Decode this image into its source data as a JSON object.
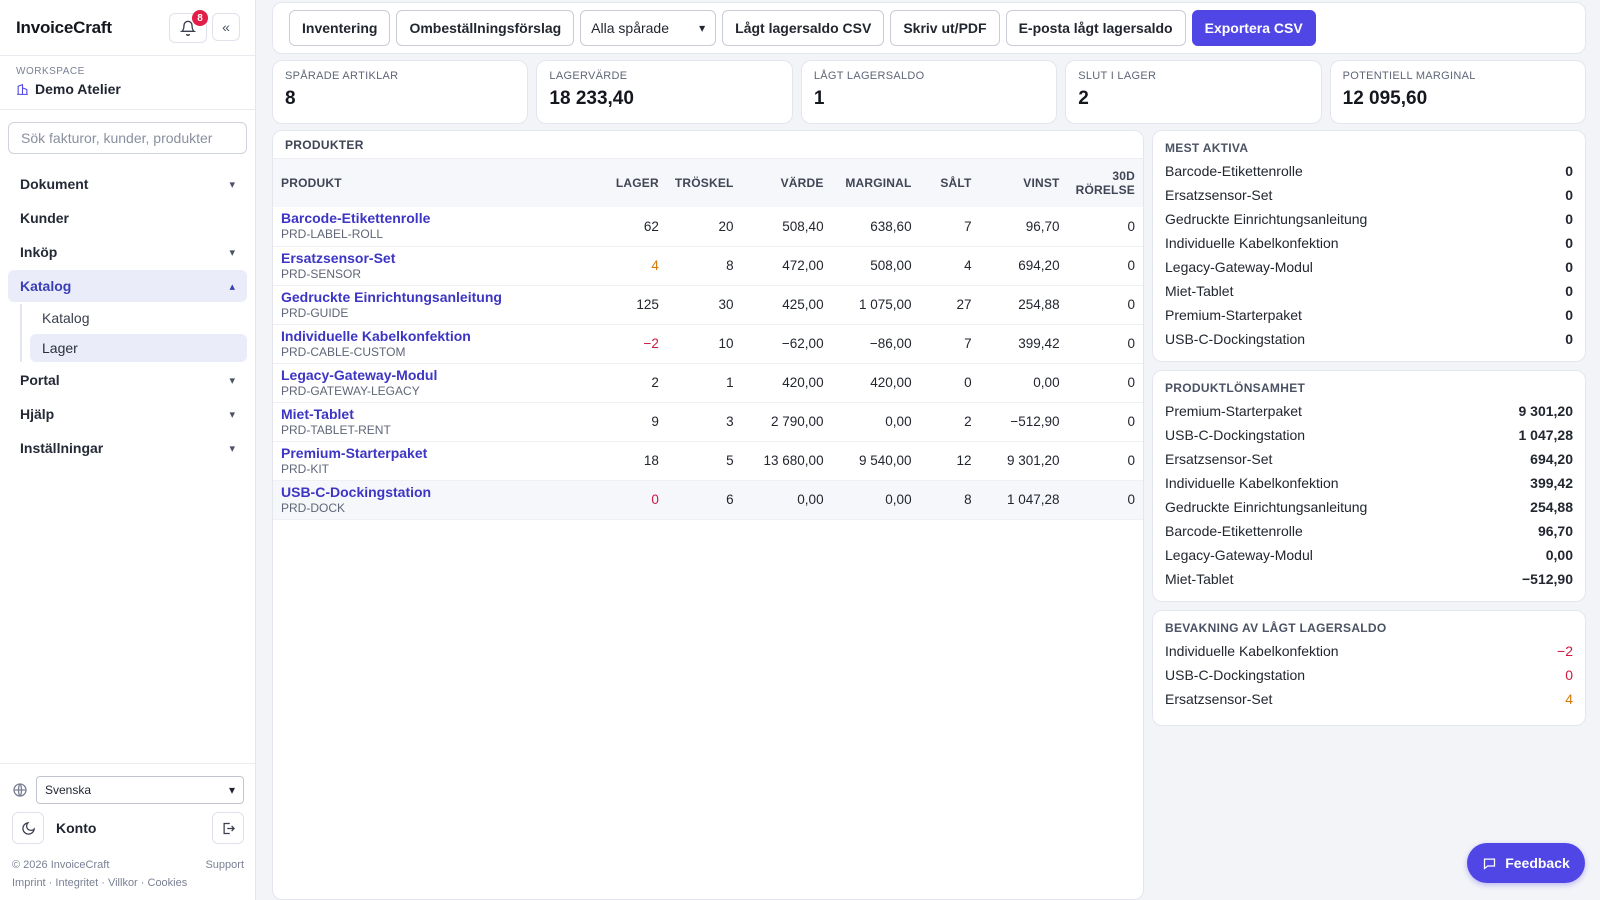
{
  "app": {
    "brand": "InvoiceCraft",
    "notification_count": "8"
  },
  "workspace": {
    "label": "WORKSPACE",
    "name": "Demo Atelier"
  },
  "search": {
    "placeholder": "Sök fakturor, kunder, produkter"
  },
  "nav": {
    "dokument": "Dokument",
    "kunder": "Kunder",
    "inkop": "Inköp",
    "katalog": "Katalog",
    "sub_katalog": "Katalog",
    "sub_lager": "Lager",
    "portal": "Portal",
    "hjalp": "Hjälp",
    "installningar": "Inställningar"
  },
  "sidebar_bottom": {
    "language": "Svenska",
    "account": "Konto",
    "copyright": "© 2026 InvoiceCraft",
    "support": "Support",
    "links": "Imprint · Integritet · Villkor · Cookies"
  },
  "toolbar": {
    "inventering": "Inventering",
    "bestallning": "Ombeställningsförslag",
    "filter_select": "Alla spårade",
    "low_csv": "Lågt lagersaldo CSV",
    "print": "Skriv ut/PDF",
    "email_low": "E-posta lågt lagersaldo",
    "export": "Exportera CSV"
  },
  "kpis": [
    {
      "label": "SPÅRADE ARTIKLAR",
      "value": "8"
    },
    {
      "label": "LAGERVÄRDE",
      "value": "18 233,40"
    },
    {
      "label": "LÅGT LAGERSALDO",
      "value": "1"
    },
    {
      "label": "SLUT I LAGER",
      "value": "2"
    },
    {
      "label": "POTENTIELL MARGINAL",
      "value": "12 095,60"
    }
  ],
  "products": {
    "title": "PRODUKTER",
    "columns": {
      "produkt": "PRODUKT",
      "lager": "LAGER",
      "troskel": "TRÖSKEL",
      "varde": "VÄRDE",
      "marginal": "MARGINAL",
      "salt": "SÅLT",
      "vinst": "VINST",
      "rorelse1": "30D",
      "rorelse2": "RÖRELSE"
    },
    "rows": [
      {
        "name": "Barcode-Etikettenrolle",
        "sku": "PRD-LABEL-ROLL",
        "lager": "62",
        "troskel": "20",
        "varde": "508,40",
        "marginal": "638,60",
        "salt": "7",
        "vinst": "96,70",
        "rorelse": "0"
      },
      {
        "name": "Ersatzsensor-Set",
        "sku": "PRD-SENSOR",
        "lager": "4",
        "troskel": "8",
        "varde": "472,00",
        "marginal": "508,00",
        "salt": "4",
        "vinst": "694,20",
        "rorelse": "0"
      },
      {
        "name": "Gedruckte Einrichtungsanleitung",
        "sku": "PRD-GUIDE",
        "lager": "125",
        "troskel": "30",
        "varde": "425,00",
        "marginal": "1 075,00",
        "salt": "27",
        "vinst": "254,88",
        "rorelse": "0"
      },
      {
        "name": "Individuelle Kabelkonfektion",
        "sku": "PRD-CABLE-CUSTOM",
        "lager": "−2",
        "troskel": "10",
        "varde": "−62,00",
        "marginal": "−86,00",
        "salt": "7",
        "vinst": "399,42",
        "rorelse": "0"
      },
      {
        "name": "Legacy-Gateway-Modul",
        "sku": "PRD-GATEWAY-LEGACY",
        "lager": "2",
        "troskel": "1",
        "varde": "420,00",
        "marginal": "420,00",
        "salt": "0",
        "vinst": "0,00",
        "rorelse": "0"
      },
      {
        "name": "Miet-Tablet",
        "sku": "PRD-TABLET-RENT",
        "lager": "9",
        "troskel": "3",
        "varde": "2 790,00",
        "marginal": "0,00",
        "salt": "2",
        "vinst": "−512,90",
        "rorelse": "0"
      },
      {
        "name": "Premium-Starterpaket",
        "sku": "PRD-KIT",
        "lager": "18",
        "troskel": "5",
        "varde": "13 680,00",
        "marginal": "9 540,00",
        "salt": "12",
        "vinst": "9 301,20",
        "rorelse": "0"
      },
      {
        "name": "USB-C-Dockingstation",
        "sku": "PRD-DOCK",
        "lager": "0",
        "troskel": "6",
        "varde": "0,00",
        "marginal": "0,00",
        "salt": "8",
        "vinst": "1 047,28",
        "rorelse": "0"
      }
    ]
  },
  "mest_aktiva": {
    "title": "MEST AKTIVA",
    "rows": [
      {
        "name": "Barcode-Etikettenrolle",
        "value": "0"
      },
      {
        "name": "Ersatzsensor-Set",
        "value": "0"
      },
      {
        "name": "Gedruckte Einrichtungsanleitung",
        "value": "0"
      },
      {
        "name": "Individuelle Kabelkonfektion",
        "value": "0"
      },
      {
        "name": "Legacy-Gateway-Modul",
        "value": "0"
      },
      {
        "name": "Miet-Tablet",
        "value": "0"
      },
      {
        "name": "Premium-Starterpaket",
        "value": "0"
      },
      {
        "name": "USB-C-Dockingstation",
        "value": "0"
      }
    ]
  },
  "lonsamhet": {
    "title": "PRODUKTLÖNSAMHET",
    "rows": [
      {
        "name": "Premium-Starterpaket",
        "value": "9 301,20"
      },
      {
        "name": "USB-C-Dockingstation",
        "value": "1 047,28"
      },
      {
        "name": "Ersatzsensor-Set",
        "value": "694,20"
      },
      {
        "name": "Individuelle Kabelkonfektion",
        "value": "399,42"
      },
      {
        "name": "Gedruckte Einrichtungsanleitung",
        "value": "254,88"
      },
      {
        "name": "Barcode-Etikettenrolle",
        "value": "96,70"
      },
      {
        "name": "Legacy-Gateway-Modul",
        "value": "0,00"
      },
      {
        "name": "Miet-Tablet",
        "value": "−512,90"
      }
    ]
  },
  "bevakning": {
    "title": "BEVAKNING AV LÅGT LAGERSALDO",
    "rows": [
      {
        "name": "Individuelle Kabelkonfektion",
        "value": "−2"
      },
      {
        "name": "USB-C-Dockingstation",
        "value": "0"
      },
      {
        "name": "Ersatzsensor-Set",
        "value": "4"
      }
    ]
  },
  "feedback": {
    "label": "Feedback"
  },
  "colors": {
    "accent": "#4f46e5",
    "negative": "#d0163f",
    "warning": "#d97706",
    "link": "#3d35c4"
  }
}
